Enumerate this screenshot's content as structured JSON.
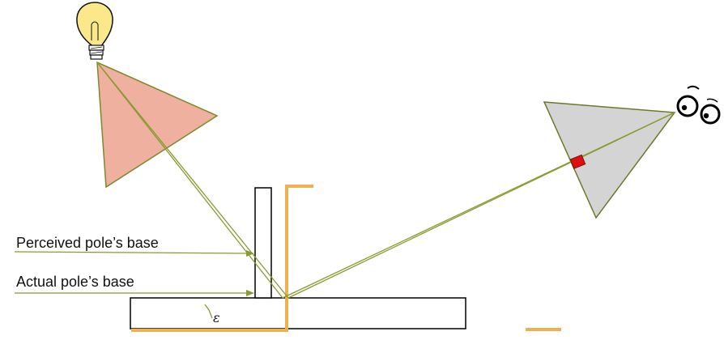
{
  "labels": {
    "perceived": "Perceived pole’s base",
    "actual": "Actual pole’s base",
    "epsilon": "ε"
  },
  "colors": {
    "light_cone_fill": "#efb0a0",
    "light_cone_stroke": "#7a8a2a",
    "view_cone_fill": "#d4d4d4",
    "view_cone_stroke": "#6a7a2a",
    "ray": "#8a9a30",
    "highlight": "#f0b050",
    "pixel": "#e01010",
    "outline": "#000000",
    "bulb": "#fbe88a"
  },
  "icons": {
    "light_source": "light-bulb-icon",
    "camera": "eyes-icon"
  }
}
